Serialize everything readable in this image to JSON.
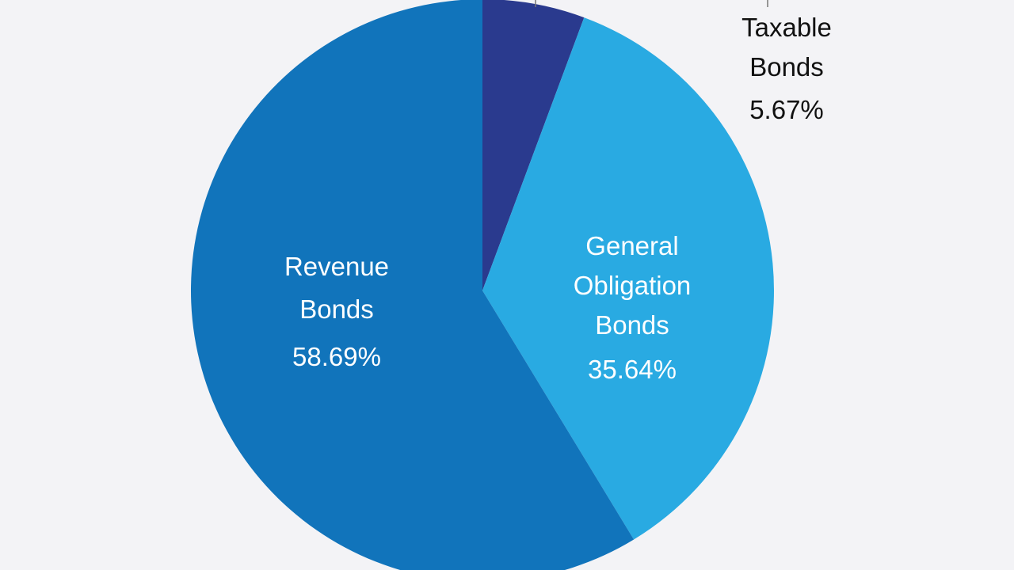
{
  "chart_data": {
    "type": "pie",
    "slices": [
      {
        "name_lines": [
          "Taxable",
          "Bonds"
        ],
        "value_label": "5.67%",
        "value": 5.67,
        "color": "#2a3a8e",
        "label_color": "#111111"
      },
      {
        "name_lines": [
          "General",
          "Obligation",
          "Bonds"
        ],
        "value_label": "35.64%",
        "value": 35.64,
        "color": "#29aae2",
        "label_color": "#ffffff"
      },
      {
        "name_lines": [
          "Revenue",
          "Bonds"
        ],
        "value_label": "58.69%",
        "value": 58.69,
        "color": "#1174bb",
        "label_color": "#ffffff"
      }
    ],
    "start_angle_deg": 0,
    "direction": "clockwise",
    "background": "#f3f3f6"
  }
}
